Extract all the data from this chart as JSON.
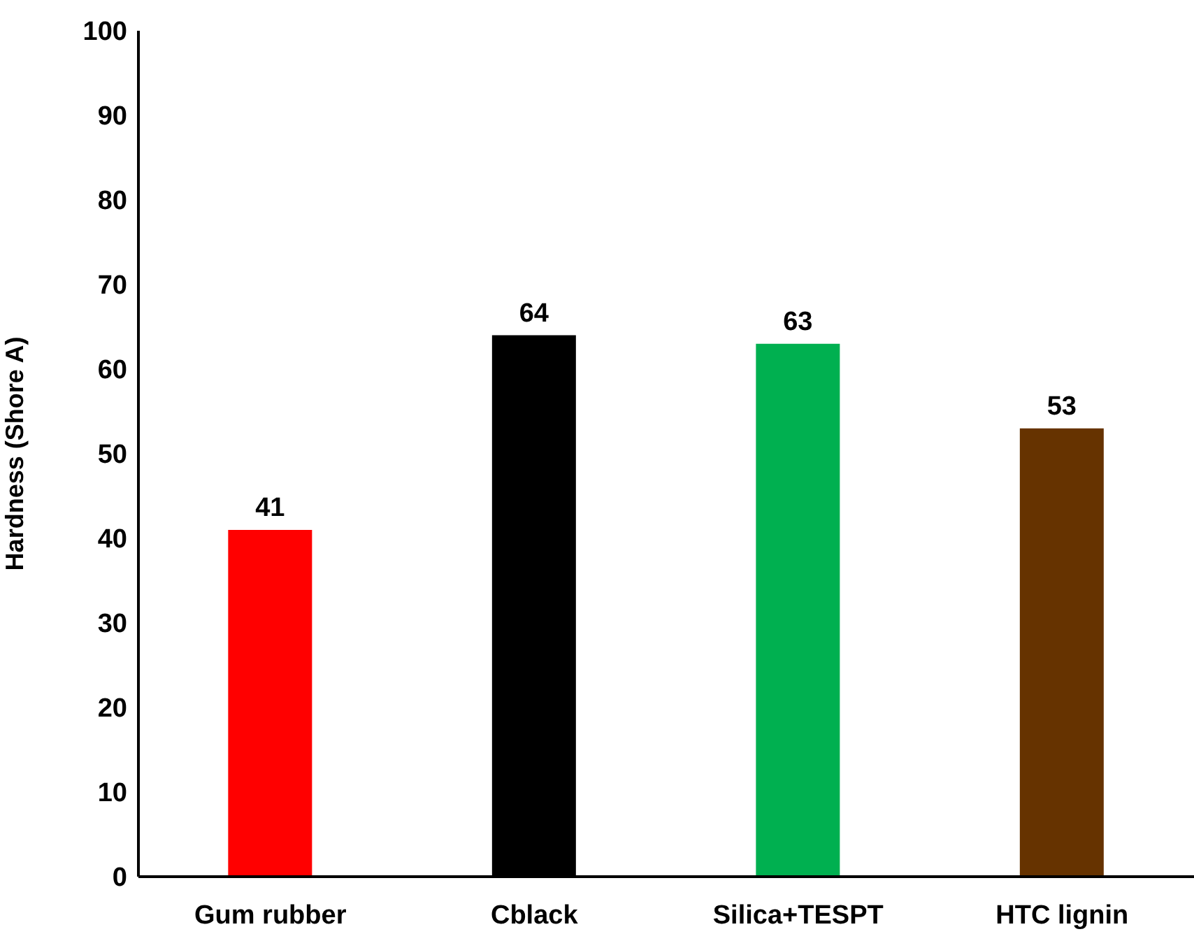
{
  "chart_data": {
    "type": "bar",
    "ylabel": "Hardness (Shore A)",
    "categories": [
      "Gum rubber",
      "Cblack",
      "Silica+TESPT",
      "HTC lignin"
    ],
    "values": [
      41,
      64,
      63,
      53
    ],
    "colors": [
      "#ff0000",
      "#000000",
      "#00b050",
      "#663300"
    ],
    "ylim": [
      0,
      100
    ],
    "yticks": [
      0,
      10,
      20,
      30,
      40,
      50,
      60,
      70,
      80,
      90,
      100
    ],
    "grid": false,
    "legend": false,
    "data_labels": true
  }
}
